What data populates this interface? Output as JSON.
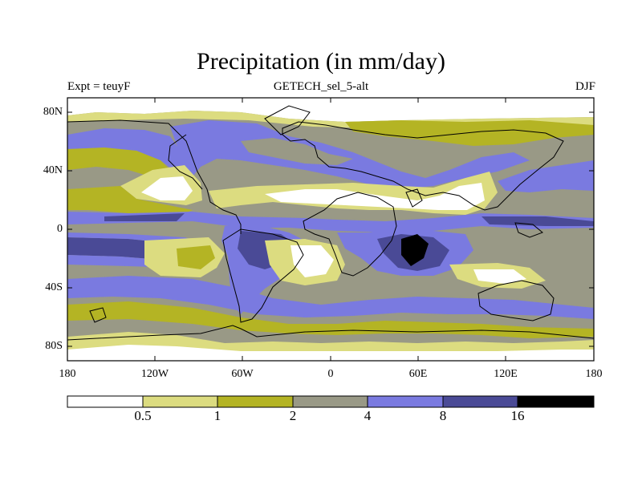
{
  "title": "Precipitation (in mm/day)",
  "subtitle_left": "Expt = teuyF",
  "subtitle_center": "GETECH_sel_5-alt",
  "subtitle_right": "DJF",
  "lat_labels": [
    "80N",
    "40N",
    "0",
    "40S",
    "80S"
  ],
  "lon_labels": [
    "180",
    "120W",
    "60W",
    "0",
    "60E",
    "120E",
    "180"
  ],
  "colorbar": {
    "labels": [
      "0.5",
      "1",
      "2",
      "4",
      "8",
      "16"
    ],
    "colors": [
      "#ffffff",
      "#dcdc80",
      "#b4b424",
      "#999986",
      "#7a7ae0",
      "#4a4a96",
      "#000000"
    ]
  },
  "map_colors": {
    "coast": "#000000",
    "c_lt05": "#ffffff",
    "c_05_1": "#dcdc80",
    "c_1_2": "#b4b424",
    "c_2_4": "#999986",
    "c_4_8": "#7a7ae0",
    "c_8_16": "#4a4a96",
    "c_gt16": "#000000"
  }
}
